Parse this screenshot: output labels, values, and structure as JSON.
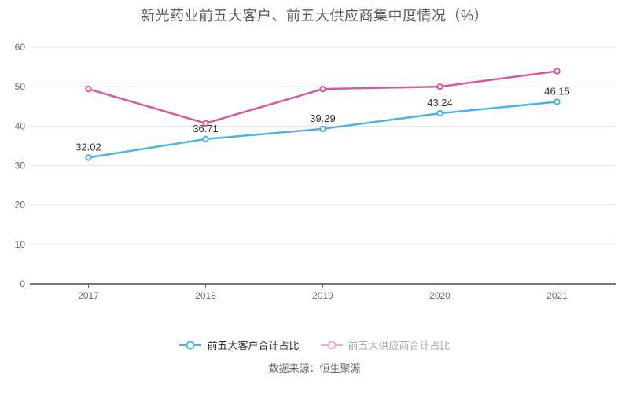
{
  "title": "新光药业前五大客户、前五大供应商集中度情况（%）",
  "source": "数据来源：恒生聚源",
  "legend": [
    {
      "label": "前五大客户合计占比",
      "marker_color": "#4ab3e8",
      "text_color": "#333333"
    },
    {
      "label": "前五大供应商合计占比",
      "marker_color": "#f1abce",
      "text_color": "#aaaaaa"
    }
  ],
  "colors": {
    "customer_line": "#4ab3e8",
    "supplier_line": "#d8599a",
    "grid_line": "#e2e6f0",
    "axis_line": "#4d4d4d",
    "tick_label": "#6e6e6e",
    "data_label": "#333333",
    "title_text": "#595959"
  },
  "chart_data": {
    "type": "line",
    "categories": [
      "2017",
      "2018",
      "2019",
      "2020",
      "2021"
    ],
    "series": [
      {
        "name": "前五大客户合计占比",
        "color": "#4ab3e8",
        "values": [
          32.02,
          36.71,
          39.29,
          43.24,
          46.15
        ],
        "labels": [
          "32.02",
          "36.71",
          "39.29",
          "43.24",
          "46.15"
        ],
        "show_labels": true
      },
      {
        "name": "前五大供应商合计占比",
        "color": "#d8599a",
        "values": [
          49.4,
          40.7,
          49.4,
          50.0,
          53.9
        ],
        "labels": [],
        "show_labels": false
      }
    ],
    "yticks": [
      0,
      10,
      20,
      30,
      40,
      50,
      60
    ],
    "ylim": [
      0,
      60
    ],
    "xlabel": "",
    "ylabel": "",
    "grid": true,
    "legend_position": "bottom"
  }
}
